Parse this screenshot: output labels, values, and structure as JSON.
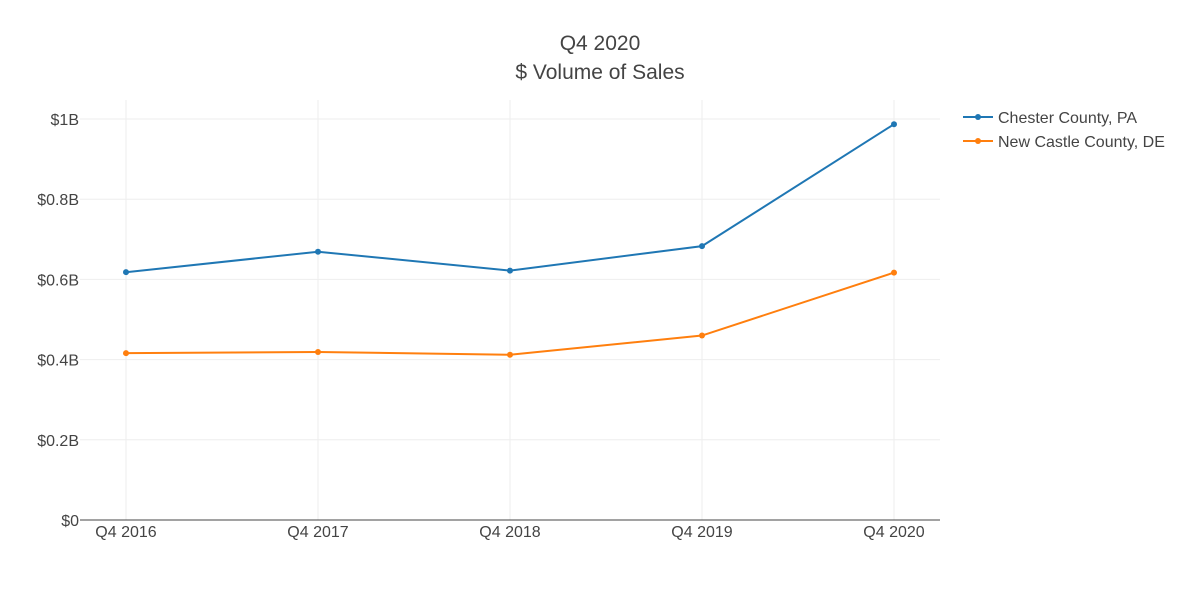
{
  "chart_data": {
    "type": "line",
    "title": "Q4 2020",
    "subtitle": "$ Volume of Sales",
    "xlabel": "",
    "ylabel": "",
    "categories": [
      "Q4 2016",
      "Q4 2017",
      "Q4 2018",
      "Q4 2019",
      "Q4 2020"
    ],
    "ylim": [
      0,
      1.05
    ],
    "yticks": [
      0,
      0.2,
      0.4,
      0.6,
      0.8,
      1.0
    ],
    "ytick_labels": [
      "$0",
      "$0.2B",
      "$0.4B",
      "$0.6B",
      "$0.8B",
      "$1B"
    ],
    "y_units": "billions USD",
    "grid": true,
    "legend_position": "top-right",
    "series": [
      {
        "name": "Chester County, PA",
        "color": "#1f77b4",
        "values": [
          0.618,
          0.669,
          0.622,
          0.683,
          0.987
        ]
      },
      {
        "name": "New Castle County, DE",
        "color": "#ff7f0e",
        "values": [
          0.416,
          0.419,
          0.412,
          0.46,
          0.617
        ]
      }
    ]
  }
}
